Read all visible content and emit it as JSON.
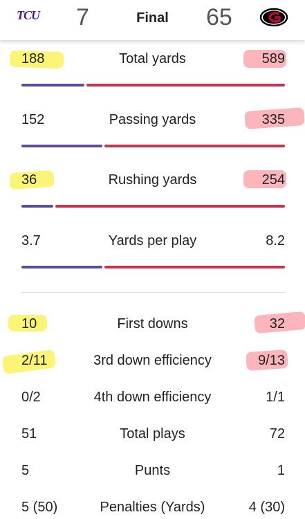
{
  "header": {
    "away_team": "TCU",
    "away_score": 7,
    "status": "Final",
    "home_score": 65
  },
  "stats": {
    "yardage": [
      {
        "label": "Total yards",
        "away": 188,
        "home": 589
      },
      {
        "label": "Passing yards",
        "away": 152,
        "home": 335
      },
      {
        "label": "Rushing yards",
        "away": 36,
        "home": 254
      },
      {
        "label": "Yards per play",
        "away": 3.7,
        "home": 8.2
      }
    ],
    "other": [
      {
        "label": "First downs",
        "away": 10,
        "home": 32
      },
      {
        "label": "3rd down efficiency",
        "away": "2/11",
        "home": "9/13"
      },
      {
        "label": "4th down efficiency",
        "away": "0/2",
        "home": "1/1"
      },
      {
        "label": "Total plays",
        "away": 51,
        "home": 72
      },
      {
        "label": "Punts",
        "away": 5,
        "home": 1
      },
      {
        "label": "Penalties (Yards)",
        "away": "5 (50)",
        "home": "4 (30)"
      }
    ]
  }
}
